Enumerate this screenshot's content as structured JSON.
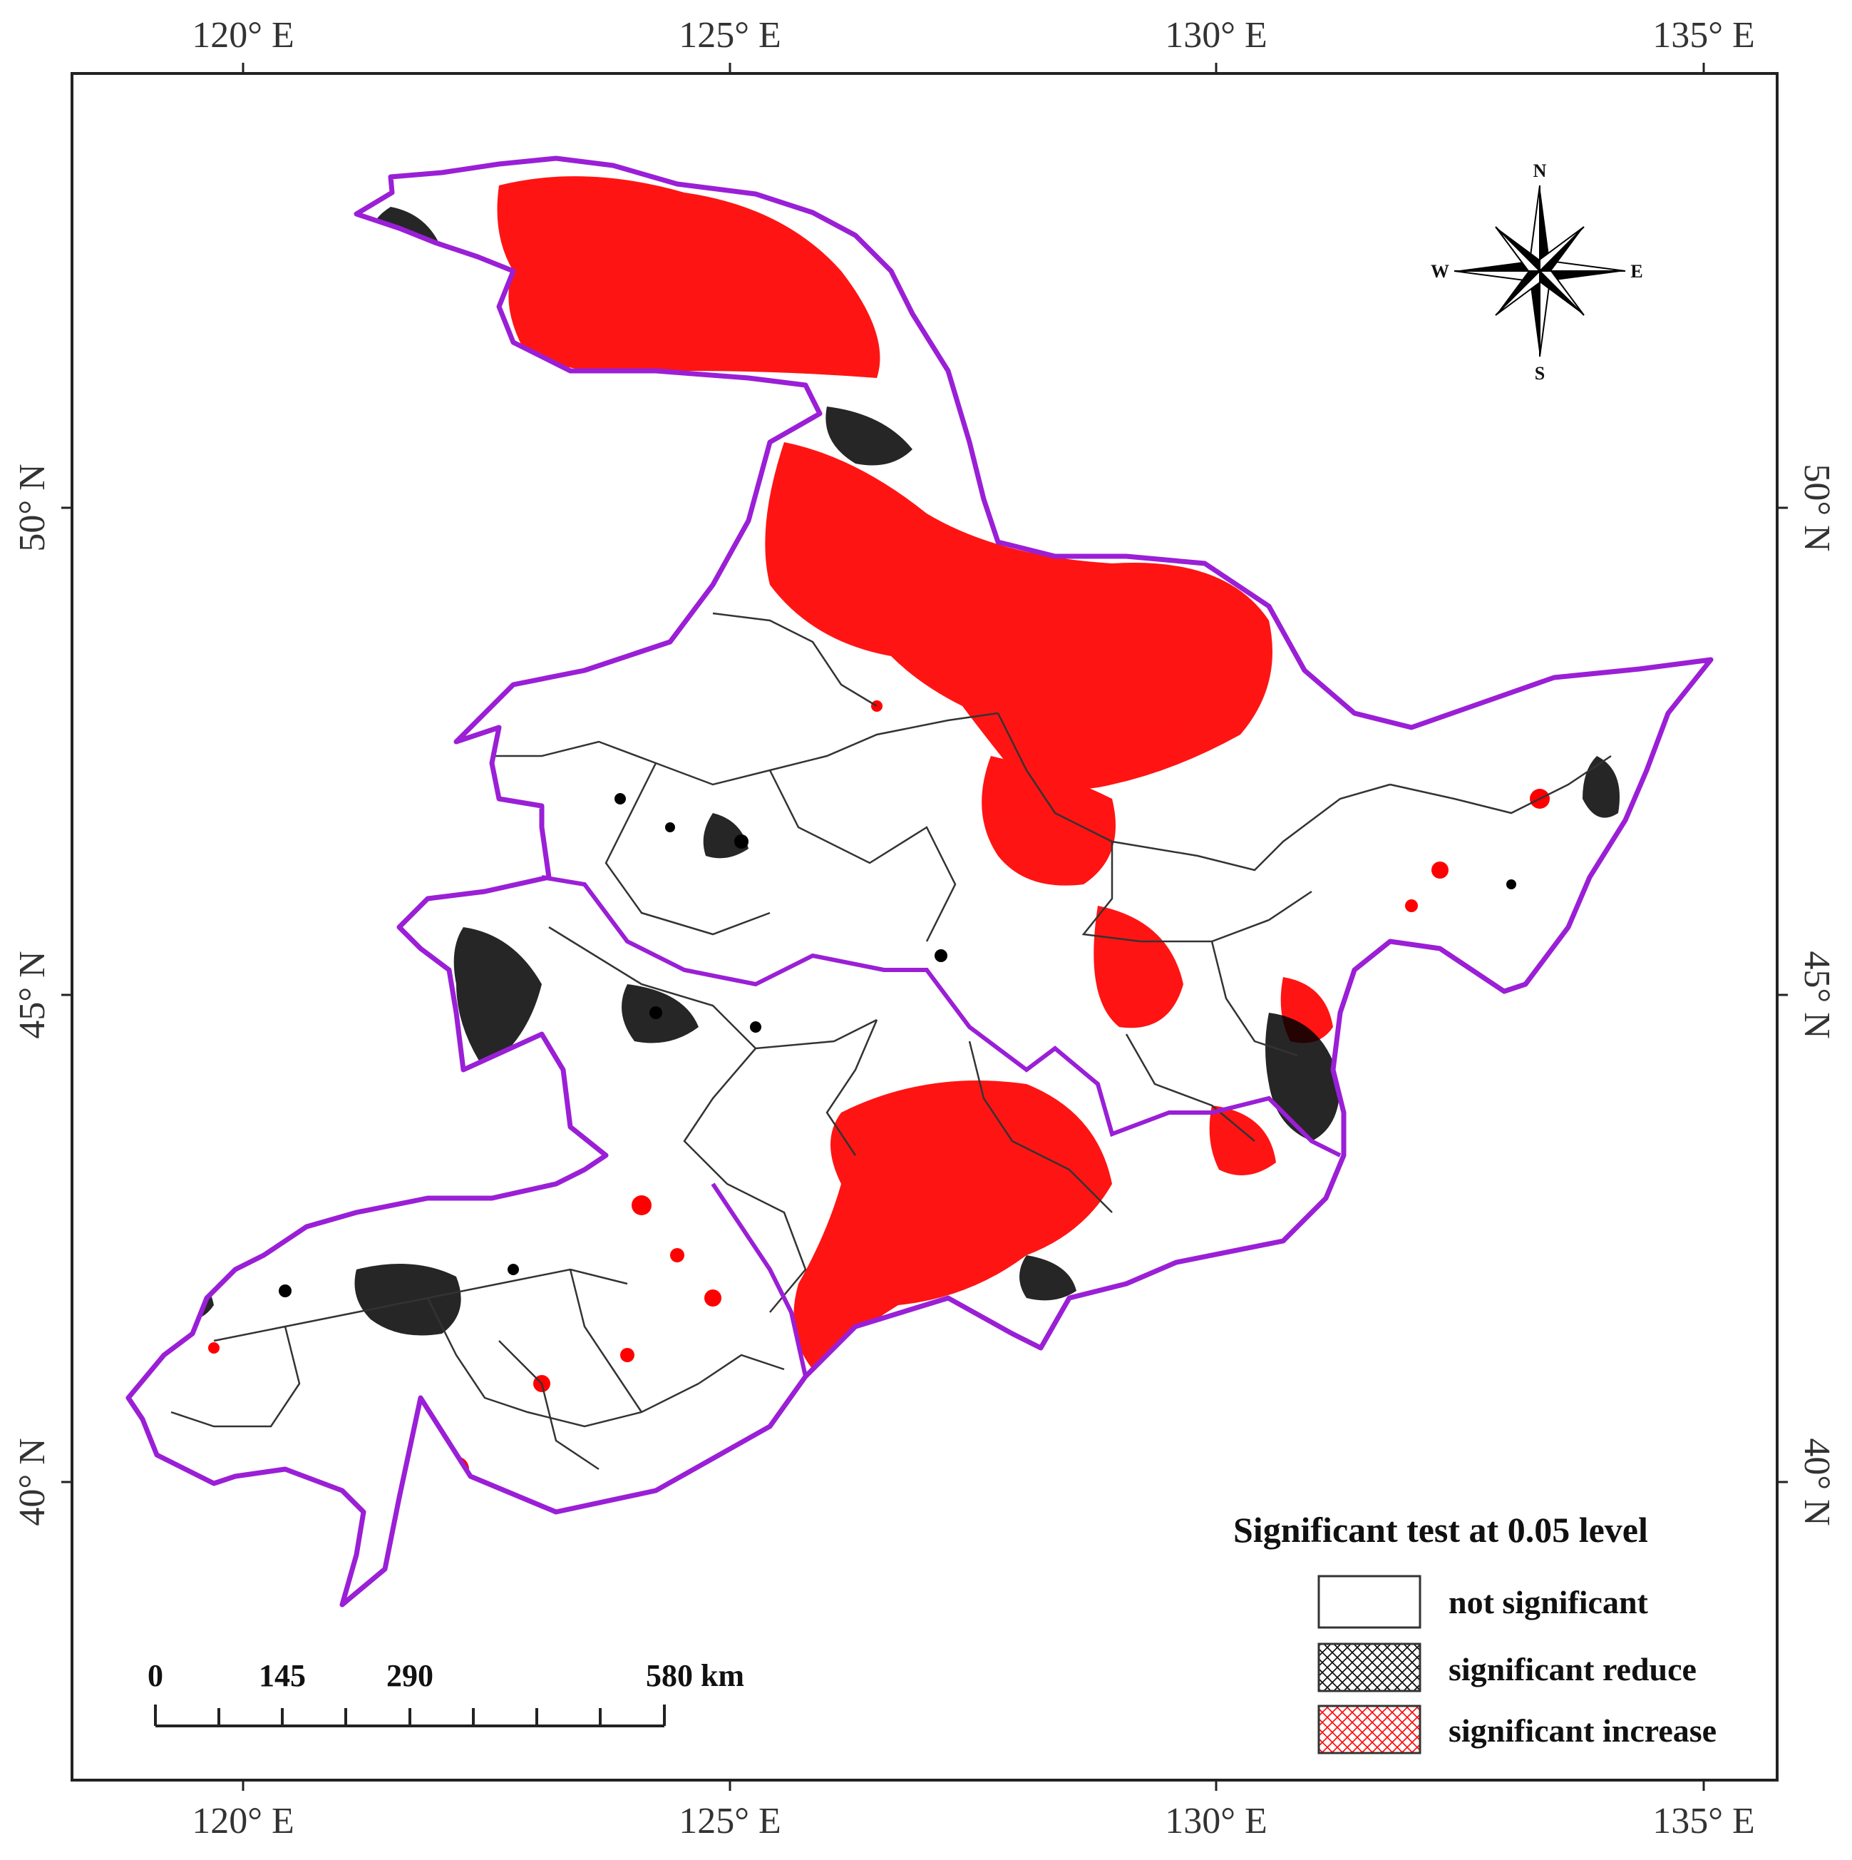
{
  "coords": {
    "top": [
      "120° E",
      "125° E",
      "130° E",
      "135° E"
    ],
    "bottom": [
      "120° E",
      "125° E",
      "130° E",
      "135° E"
    ],
    "left": [
      "50° N",
      "45° N",
      "40° N"
    ],
    "right": [
      "50° N",
      "45° N",
      "40° N"
    ]
  },
  "compass": {
    "n": "N",
    "s": "S",
    "e": "E",
    "w": "W"
  },
  "legend": {
    "title": "Significant test at 0.05 level",
    "items": [
      {
        "label": "not significant",
        "pattern": "none",
        "color": "#ffffff"
      },
      {
        "label": "significant reduce",
        "pattern": "crosshatch",
        "color": "#000000"
      },
      {
        "label": "significant increase",
        "pattern": "crosshatch",
        "color": "#ff0000"
      }
    ]
  },
  "scale_bar": {
    "labels": [
      "0",
      "145",
      "290",
      "580 km"
    ]
  },
  "colors": {
    "boundary": "#9a1fd6",
    "inner_boundary": "#333333",
    "increase": "#ff0000",
    "reduce": "#000000"
  }
}
